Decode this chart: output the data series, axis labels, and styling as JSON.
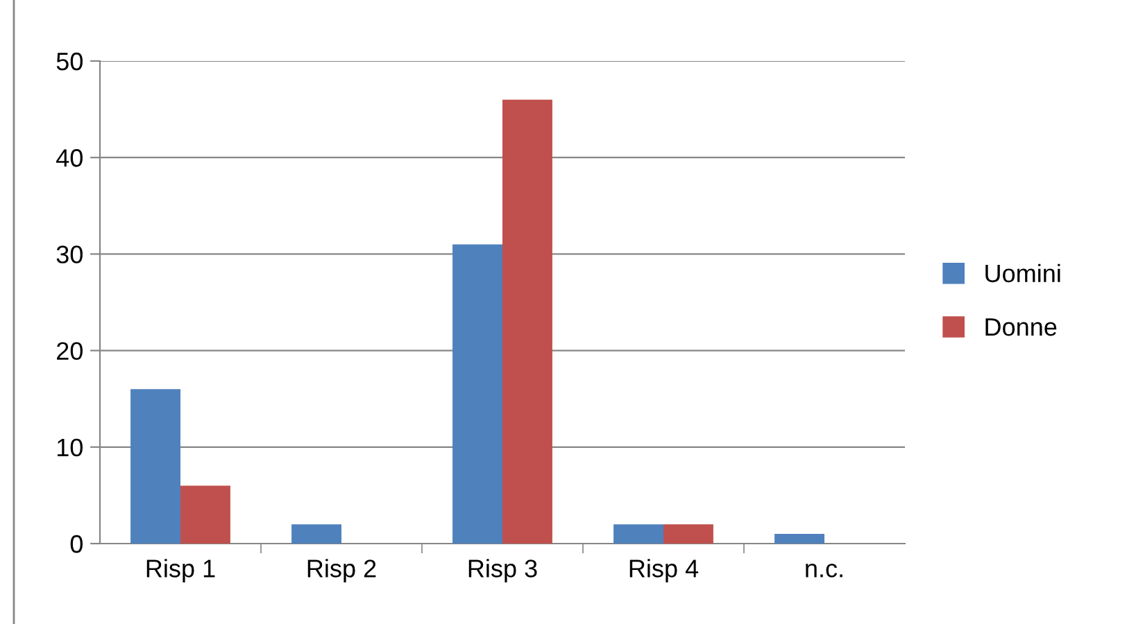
{
  "chart_data": {
    "type": "bar",
    "categories": [
      "Risp 1",
      "Risp 2",
      "Risp 3",
      "Risp 4",
      "n.c."
    ],
    "series": [
      {
        "name": "Uomini",
        "color": "#4f81bd",
        "values": [
          16,
          2,
          31,
          2,
          1
        ]
      },
      {
        "name": "Donne",
        "color": "#c0504d",
        "values": [
          6,
          0,
          46,
          2,
          0
        ]
      }
    ],
    "ylim": [
      0,
      50
    ],
    "yticks": [
      0,
      10,
      20,
      30,
      40,
      50
    ],
    "grid": "y",
    "legend": "right"
  }
}
